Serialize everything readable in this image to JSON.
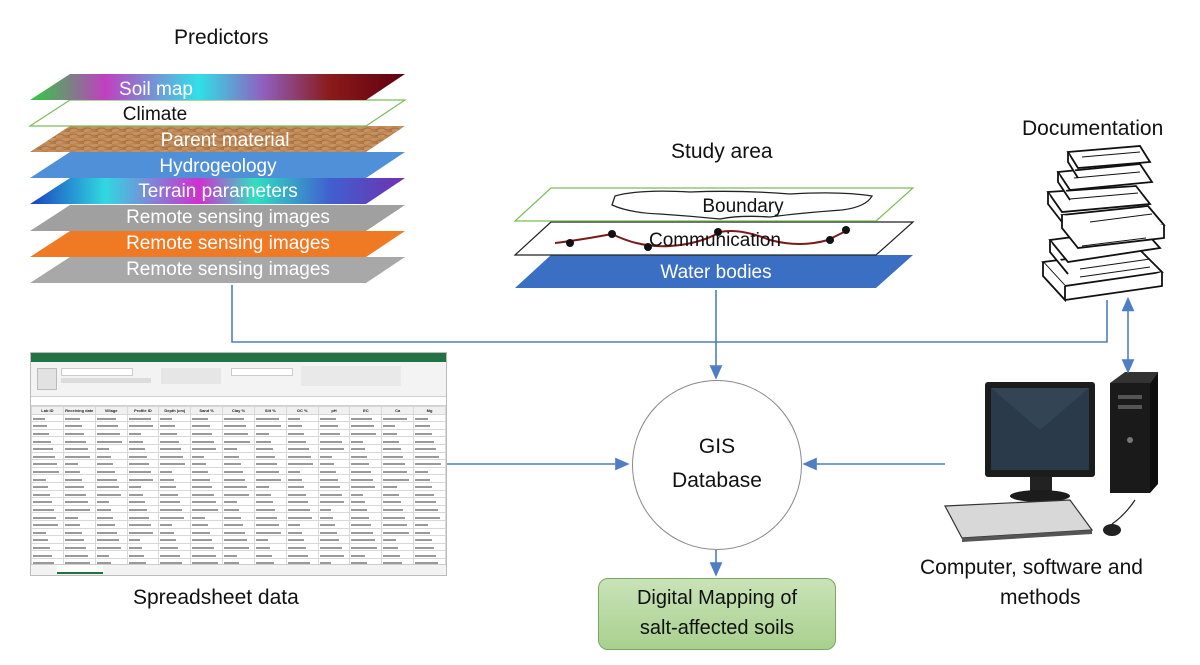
{
  "predictors": {
    "title": "Predictors",
    "layers": [
      "Soil map",
      "Climate",
      "Parent material",
      "Hydrogeology",
      "Terrain parameters",
      "Remote sensing images",
      "Remote sensing images",
      "Remote sensing images"
    ]
  },
  "study_area": {
    "title": "Study area",
    "layers": [
      "Boundary",
      "Communication",
      "Water bodies"
    ]
  },
  "documentation": {
    "title": "Documentation",
    "icon": "books-icon"
  },
  "spreadsheet": {
    "title": "Spreadsheet data",
    "icon": "spreadsheet-icon",
    "headers": [
      "Lab ID",
      "Receiving date",
      "Village",
      "Profile ID",
      "Depth (cm)",
      "Sand %",
      "Clay %",
      "Silt %",
      "OC %",
      "pH",
      "EC",
      "Ca",
      "Mg"
    ]
  },
  "gis": {
    "line1": "GIS",
    "line2": "Database"
  },
  "computer": {
    "line1": "Computer, software and",
    "line2": "methods",
    "icon": "computer-icon"
  },
  "output": {
    "line1": "Digital Mapping of",
    "line2": "salt-affected soils"
  },
  "colors": {
    "arrow": "#4f7ec4",
    "output_fill": "#a9d08e",
    "water": "#3a6fc4"
  }
}
